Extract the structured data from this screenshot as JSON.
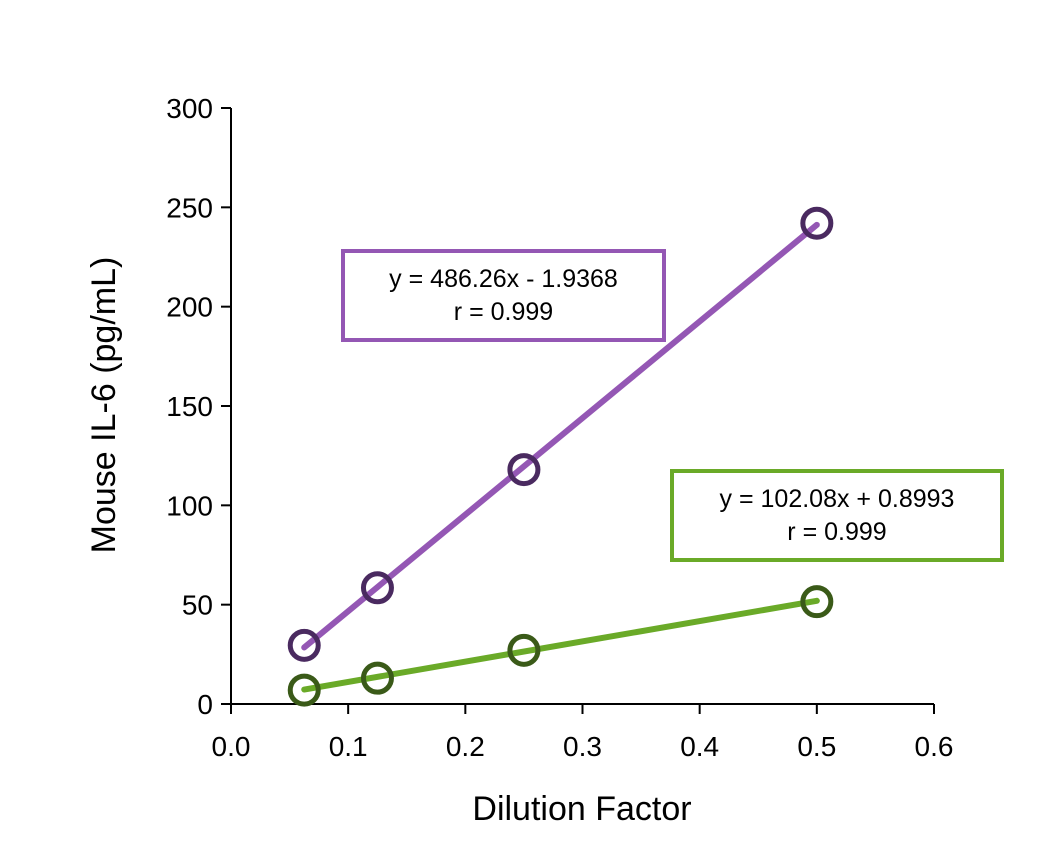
{
  "chart_data": {
    "type": "scatter",
    "xlabel": "Dilution Factor",
    "ylabel": "Mouse IL-6 (pg/mL)",
    "xlim": [
      0.0,
      0.6
    ],
    "ylim": [
      0,
      300
    ],
    "x_ticks": [
      "0.0",
      "0.1",
      "0.2",
      "0.3",
      "0.4",
      "0.5",
      "0.6"
    ],
    "y_ticks": [
      "0",
      "50",
      "100",
      "150",
      "200",
      "250",
      "300"
    ],
    "grid": false,
    "legend": "none",
    "series": [
      {
        "color": "#9457b4",
        "marker_color": "#4a2a60",
        "x": [
          0.0625,
          0.125,
          0.25,
          0.5
        ],
        "y": [
          29.5,
          58.5,
          118,
          242
        ],
        "trendline": {
          "slope": 486.26,
          "intercept": -1.9368
        },
        "annotation": [
          "y = 486.26x - 1.9368",
          "r = 0.999"
        ]
      },
      {
        "color": "#6aaa28",
        "marker_color": "#3a5a18",
        "x": [
          0.0625,
          0.125,
          0.25,
          0.5
        ],
        "y": [
          7,
          13,
          27,
          51.5
        ],
        "trendline": {
          "slope": 102.08,
          "intercept": 0.8993
        },
        "annotation": [
          "y = 102.08x + 0.8993",
          "r = 0.999"
        ]
      }
    ]
  }
}
